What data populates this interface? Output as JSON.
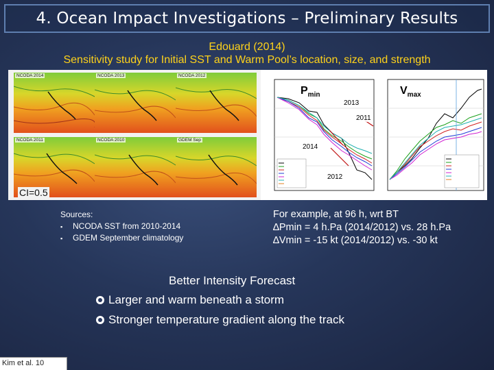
{
  "slide": {
    "title": "4. Ocean Impact Investigations – Preliminary Results",
    "subtitle1": "Edouard (2014)",
    "subtitle2": "Sensitivity study for Initial SST and Warm Pool’s location, size, and strength",
    "footer": "Kim et al. 10"
  },
  "maps": {
    "labels": [
      "NCODA 2014",
      "NCODA 2013",
      "NCODA 2012",
      "NCODA 2011",
      "NCODA 2010",
      "GDEM Sep"
    ],
    "ci": "CI=0.5"
  },
  "chart": {
    "pmin_main": "P",
    "pmin_sub": "min",
    "vmax_main": "V",
    "vmax_sub": "max",
    "year_labels": [
      "2013",
      "2011",
      "2014",
      "2012"
    ]
  },
  "sources": {
    "heading": "Sources:",
    "items": [
      "NCODA SST from 2010-2014",
      "GDEM September climatology"
    ]
  },
  "example": {
    "line1": "For example, at 96 h, wrt BT",
    "line2": "∆Pmin = 4 h.Pa (2014/2012) vs. 28 h.Pa",
    "line3": "∆Vmin = -15 kt (2014/2012) vs. -30 kt"
  },
  "conclusion": {
    "heading": "Better Intensity Forecast",
    "points": [
      "Larger and warm beneath a storm",
      "Stronger temperature gradient along the track"
    ]
  },
  "colors": {
    "title_border": "#5f7fb0",
    "subtitle": "#ffd21a",
    "background": "#26365a"
  }
}
